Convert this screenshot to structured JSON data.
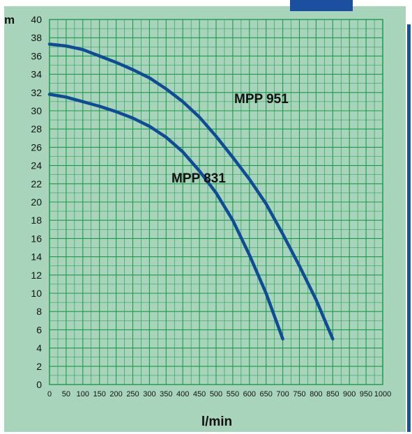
{
  "chart_data": {
    "type": "line",
    "y_unit": "m",
    "xlabel": "l/min",
    "xlim": [
      0,
      1000
    ],
    "ylim": [
      0,
      40
    ],
    "x_ticks": [
      "0",
      "50",
      "100",
      "150",
      "200",
      "250",
      "300",
      "350",
      "400",
      "450",
      "500",
      "550",
      "600",
      "650",
      "700",
      "750",
      "800",
      "850",
      "900",
      "950",
      "1000"
    ],
    "y_ticks": [
      "0",
      "2",
      "4",
      "6",
      "8",
      "10",
      "12",
      "14",
      "16",
      "18",
      "20",
      "22",
      "24",
      "26",
      "28",
      "30",
      "32",
      "34",
      "36",
      "38",
      "40"
    ],
    "grid": true,
    "series": [
      {
        "name": "MPP 951",
        "points": [
          [
            0,
            37.3
          ],
          [
            50,
            37.1
          ],
          [
            100,
            36.7
          ],
          [
            150,
            36.0
          ],
          [
            200,
            35.3
          ],
          [
            250,
            34.5
          ],
          [
            300,
            33.6
          ],
          [
            350,
            32.4
          ],
          [
            400,
            31.0
          ],
          [
            450,
            29.3
          ],
          [
            500,
            27.2
          ],
          [
            550,
            24.9
          ],
          [
            600,
            22.5
          ],
          [
            650,
            19.8
          ],
          [
            700,
            16.5
          ],
          [
            750,
            13.0
          ],
          [
            800,
            9.3
          ],
          [
            850,
            5.0
          ]
        ]
      },
      {
        "name": "MPP 831",
        "points": [
          [
            0,
            31.8
          ],
          [
            50,
            31.5
          ],
          [
            100,
            31.0
          ],
          [
            150,
            30.5
          ],
          [
            200,
            29.9
          ],
          [
            250,
            29.2
          ],
          [
            300,
            28.3
          ],
          [
            350,
            27.1
          ],
          [
            400,
            25.5
          ],
          [
            450,
            23.4
          ],
          [
            500,
            21.0
          ],
          [
            550,
            18.0
          ],
          [
            600,
            14.2
          ],
          [
            650,
            10.0
          ],
          [
            700,
            5.0
          ]
        ]
      }
    ]
  },
  "colors": {
    "background": "#a9d4bc",
    "grid": "#1a9a4a",
    "curve": "#0f4c96",
    "accent": "#1b4fa0"
  }
}
